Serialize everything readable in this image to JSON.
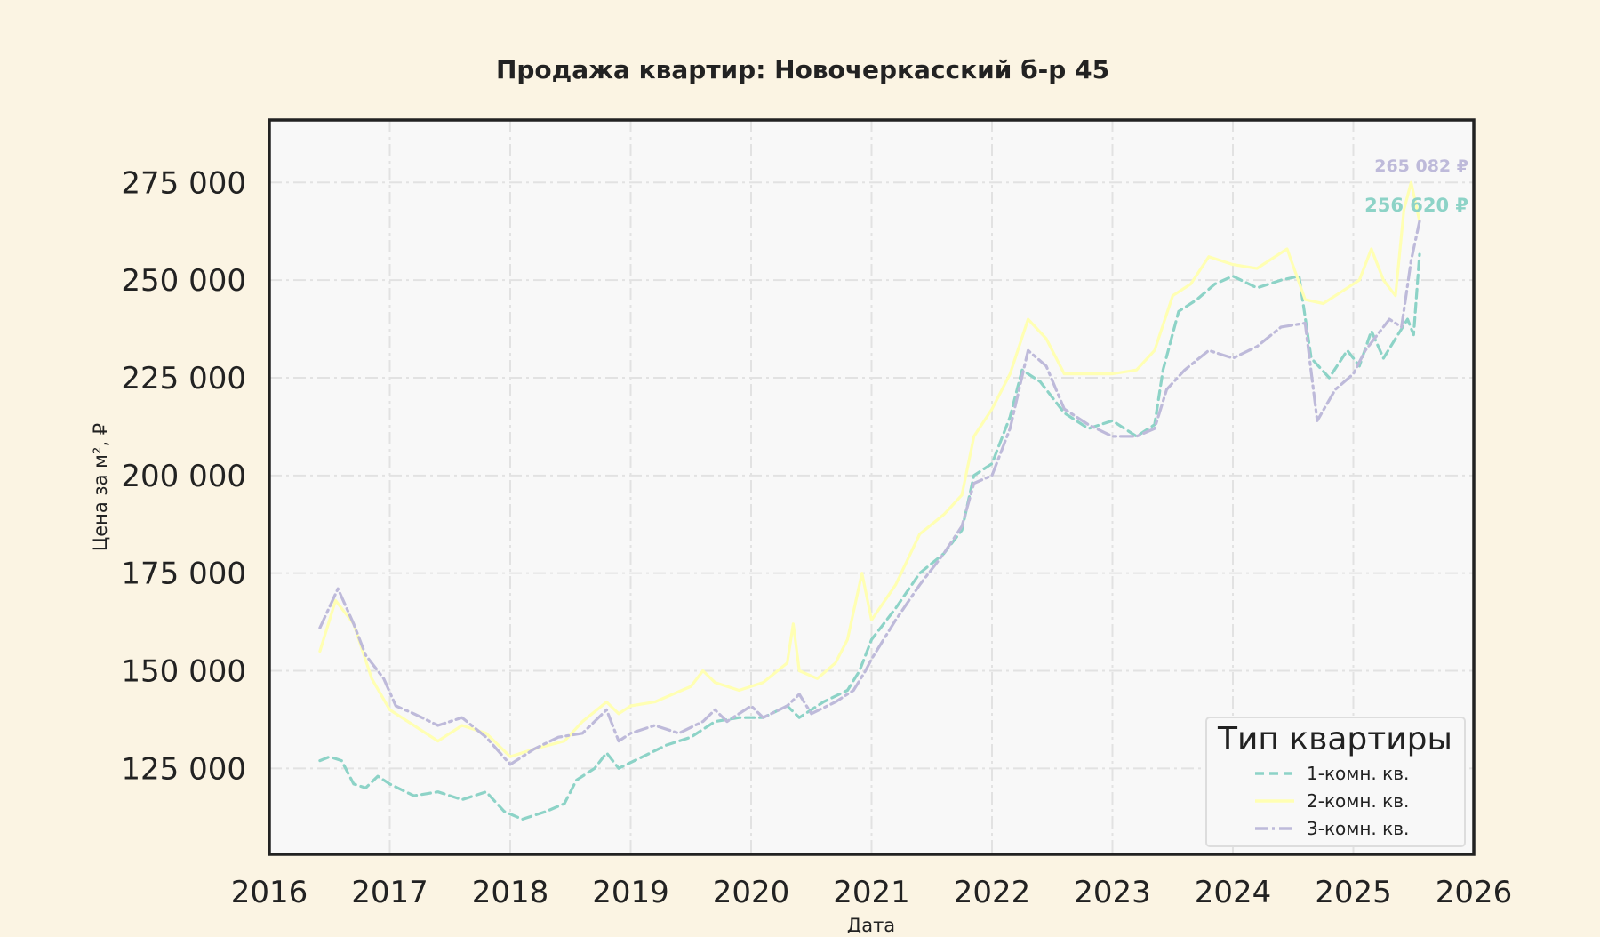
{
  "chart_data": {
    "type": "line",
    "title": "Продажа квартир: Новочеркасский б-р 45",
    "xlabel": "Дата",
    "ylabel": "Цена за м², ₽",
    "xlim": [
      2016,
      2026
    ],
    "ylim": [
      103000,
      291000
    ],
    "x_ticks": [
      2016,
      2017,
      2018,
      2019,
      2020,
      2021,
      2022,
      2023,
      2024,
      2025,
      2026
    ],
    "x_tick_labels": [
      "2016",
      "2017",
      "2018",
      "2019",
      "2020",
      "2021",
      "2022",
      "2023",
      "2024",
      "2025",
      "2026"
    ],
    "y_ticks": [
      125000,
      150000,
      175000,
      200000,
      225000,
      250000,
      275000
    ],
    "y_tick_labels": [
      "125 000",
      "150 000",
      "175 000",
      "200 000",
      "225 000",
      "250 000",
      "275 000"
    ],
    "grid": true,
    "legend": {
      "title": "Тип квартиры",
      "placement": "lower-right"
    },
    "end_labels": [
      {
        "text": "265 082 ₽",
        "value": 265082,
        "color": "#bebada"
      },
      {
        "text": "256 620 ₽",
        "value": 256620,
        "color": "#8dd3c7"
      }
    ],
    "series": [
      {
        "name": "1-комн. кв.",
        "color": "#8dd3c7",
        "dash": "dashed",
        "x": [
          2016.42,
          2016.5,
          2016.6,
          2016.7,
          2016.8,
          2016.9,
          2017.0,
          2017.2,
          2017.4,
          2017.6,
          2017.8,
          2017.95,
          2018.1,
          2018.3,
          2018.45,
          2018.55,
          2018.7,
          2018.8,
          2018.9,
          2019.1,
          2019.3,
          2019.5,
          2019.7,
          2019.9,
          2020.1,
          2020.3,
          2020.4,
          2020.6,
          2020.8,
          2020.9,
          2021.0,
          2021.2,
          2021.4,
          2021.6,
          2021.75,
          2021.85,
          2022.0,
          2022.15,
          2022.25,
          2022.4,
          2022.6,
          2022.8,
          2023.0,
          2023.2,
          2023.35,
          2023.42,
          2023.55,
          2023.7,
          2023.85,
          2024.0,
          2024.2,
          2024.4,
          2024.55,
          2024.65,
          2024.8,
          2024.95,
          2025.05,
          2025.15,
          2025.25,
          2025.35,
          2025.45,
          2025.5,
          2025.55
        ],
        "values": [
          127000,
          128000,
          127000,
          121000,
          120000,
          123000,
          121000,
          118000,
          119000,
          117000,
          119000,
          114000,
          112000,
          114000,
          116000,
          122000,
          125000,
          129000,
          125000,
          128000,
          131000,
          133000,
          137000,
          138000,
          138000,
          141000,
          138000,
          142000,
          145000,
          150000,
          158000,
          166000,
          175000,
          180000,
          186000,
          200000,
          203000,
          215000,
          227000,
          224000,
          216000,
          212000,
          214000,
          210000,
          213000,
          227000,
          242000,
          245000,
          249000,
          251000,
          248000,
          250000,
          251000,
          230000,
          225000,
          232000,
          228000,
          237000,
          230000,
          235000,
          240000,
          236000,
          256620
        ]
      },
      {
        "name": "2-комн. кв.",
        "color": "#ffffb3",
        "dash": "solid",
        "x": [
          2016.42,
          2016.55,
          2016.7,
          2016.85,
          2017.0,
          2017.2,
          2017.4,
          2017.6,
          2017.8,
          2018.0,
          2018.2,
          2018.45,
          2018.6,
          2018.8,
          2018.9,
          2019.0,
          2019.2,
          2019.5,
          2019.6,
          2019.7,
          2019.9,
          2020.1,
          2020.3,
          2020.35,
          2020.4,
          2020.55,
          2020.7,
          2020.8,
          2020.92,
          2021.0,
          2021.2,
          2021.4,
          2021.6,
          2021.75,
          2021.85,
          2022.0,
          2022.15,
          2022.3,
          2022.45,
          2022.6,
          2022.8,
          2023.0,
          2023.2,
          2023.35,
          2023.5,
          2023.65,
          2023.8,
          2024.0,
          2024.2,
          2024.45,
          2024.6,
          2024.75,
          2024.9,
          2025.05,
          2025.15,
          2025.25,
          2025.35,
          2025.42,
          2025.48,
          2025.55
        ],
        "values": [
          155000,
          168000,
          162000,
          148000,
          140000,
          136000,
          132000,
          136000,
          134000,
          128000,
          130000,
          132000,
          137000,
          142000,
          139000,
          141000,
          142000,
          146000,
          150000,
          147000,
          145000,
          147000,
          152000,
          162000,
          150000,
          148000,
          152000,
          158000,
          175000,
          163000,
          172000,
          185000,
          190000,
          195000,
          210000,
          217000,
          226000,
          240000,
          235000,
          226000,
          226000,
          226000,
          227000,
          232000,
          246000,
          249000,
          256000,
          254000,
          253000,
          258000,
          245000,
          244000,
          247000,
          250000,
          258000,
          250000,
          246000,
          268000,
          275000,
          265082
        ]
      },
      {
        "name": "3-комн. кв.",
        "color": "#bebada",
        "dash": "dashdot",
        "x": [
          2016.42,
          2016.57,
          2016.7,
          2016.8,
          2016.95,
          2017.05,
          2017.2,
          2017.4,
          2017.6,
          2017.8,
          2018.0,
          2018.2,
          2018.4,
          2018.6,
          2018.8,
          2018.9,
          2019.0,
          2019.2,
          2019.4,
          2019.6,
          2019.7,
          2019.8,
          2020.0,
          2020.1,
          2020.3,
          2020.4,
          2020.5,
          2020.7,
          2020.85,
          2020.95,
          2021.0,
          2021.2,
          2021.4,
          2021.6,
          2021.75,
          2021.85,
          2022.0,
          2022.15,
          2022.3,
          2022.45,
          2022.6,
          2022.8,
          2023.0,
          2023.2,
          2023.35,
          2023.45,
          2023.6,
          2023.8,
          2024.0,
          2024.2,
          2024.4,
          2024.6,
          2024.7,
          2024.85,
          2025.0,
          2025.1,
          2025.2,
          2025.3,
          2025.4,
          2025.48,
          2025.55
        ],
        "values": [
          161000,
          171000,
          162000,
          154000,
          148000,
          141000,
          139000,
          136000,
          138000,
          133000,
          126000,
          130000,
          133000,
          134000,
          140000,
          132000,
          134000,
          136000,
          134000,
          137000,
          140000,
          137000,
          141000,
          138000,
          141000,
          144000,
          139000,
          142000,
          145000,
          150000,
          153000,
          163000,
          172000,
          180000,
          187000,
          198000,
          200000,
          212000,
          232000,
          228000,
          217000,
          213000,
          210000,
          210000,
          212000,
          222000,
          227000,
          232000,
          230000,
          233000,
          238000,
          239000,
          214000,
          222000,
          226000,
          232000,
          236000,
          240000,
          238000,
          255000,
          265082
        ]
      }
    ]
  }
}
